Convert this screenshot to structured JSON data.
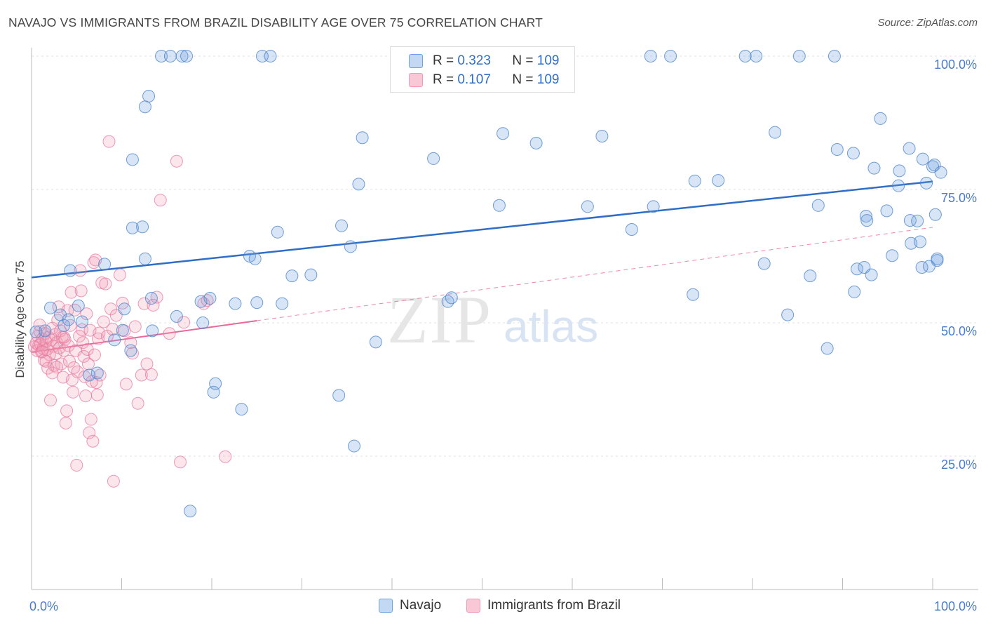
{
  "header": {
    "title": "NAVAJO VS IMMIGRANTS FROM BRAZIL DISABILITY AGE OVER 75 CORRELATION CHART",
    "source": "Source: ZipAtlas.com"
  },
  "legend": {
    "rows": [
      {
        "r_label": "R = ",
        "r_value": "0.323",
        "n_label": "N = ",
        "n_value": "109"
      },
      {
        "r_label": "R = ",
        "r_value": "0.107",
        "n_label": "N = ",
        "n_value": "109"
      }
    ]
  },
  "bottom_legend": {
    "navajo": "Navajo",
    "brazil": "Immigrants from Brazil"
  },
  "watermark": {
    "zip": "ZIP",
    "atlas": "atlas"
  },
  "colors": {
    "navajo": "#6fa3e0",
    "brazil": "#f19bb5",
    "navajo_line": "#2f6ec6",
    "brazil_line": "#e8689a",
    "tick_text": "#4a7cc9"
  },
  "chart_data": {
    "type": "scatter",
    "xlabel": "",
    "ylabel": "Disability Age Over 75",
    "xlim": [
      0,
      100
    ],
    "ylim": [
      0,
      100
    ],
    "x_tick_labels": [
      "0.0%",
      "100.0%"
    ],
    "y_tick_labels": [
      "25.0%",
      "50.0%",
      "75.0%",
      "100.0%"
    ],
    "y_ticks": [
      25,
      50,
      75,
      100
    ],
    "grid": true,
    "legend_position": "top-center",
    "series": [
      {
        "name": "Navajo",
        "r": 0.323,
        "n": 109,
        "trend": {
          "x": [
            0,
            100
          ],
          "y": [
            58.5,
            76.5
          ],
          "style": "solid"
        },
        "points": [
          [
            0.5,
            48.3
          ],
          [
            1.5,
            48.5
          ],
          [
            2.1,
            52.8
          ],
          [
            3.2,
            51.5
          ],
          [
            3.6,
            49.5
          ],
          [
            4.1,
            50.6
          ],
          [
            4.3,
            59.8
          ],
          [
            5.2,
            53.2
          ],
          [
            5.6,
            50.2
          ],
          [
            6.4,
            40.2
          ],
          [
            7.3,
            40.6
          ],
          [
            8.1,
            61
          ],
          [
            9.2,
            46.8
          ],
          [
            10.1,
            48.6
          ],
          [
            10.3,
            52.6
          ],
          [
            11,
            44.8
          ],
          [
            11.2,
            67.8
          ],
          [
            11.2,
            80.6
          ],
          [
            12.6,
            90.5
          ],
          [
            12.3,
            68
          ],
          [
            12.6,
            62
          ],
          [
            13,
            92.5
          ],
          [
            13.3,
            54.6
          ],
          [
            13.4,
            48.5
          ],
          [
            14.4,
            100
          ],
          [
            15.4,
            100
          ],
          [
            16.1,
            51.2
          ],
          [
            16.7,
            100
          ],
          [
            17.2,
            100
          ],
          [
            17.6,
            14.7
          ],
          [
            18.8,
            54
          ],
          [
            19,
            50
          ],
          [
            19.8,
            54.6
          ],
          [
            20.2,
            37
          ],
          [
            20.4,
            38.6
          ],
          [
            22.6,
            53.6
          ],
          [
            23.3,
            33.8
          ],
          [
            24.2,
            62.5
          ],
          [
            24.8,
            62
          ],
          [
            25,
            53.8
          ],
          [
            25.6,
            100
          ],
          [
            26.5,
            100
          ],
          [
            27.3,
            67
          ],
          [
            27.8,
            53.6
          ],
          [
            28.9,
            58.8
          ],
          [
            31,
            59
          ],
          [
            34.1,
            36.4
          ],
          [
            34.4,
            68.2
          ],
          [
            35.4,
            64.3
          ],
          [
            35.8,
            26.9
          ],
          [
            36.3,
            76
          ],
          [
            36.7,
            84.7
          ],
          [
            38.2,
            46.4
          ],
          [
            41.3,
            100
          ],
          [
            44.6,
            80.8
          ],
          [
            46.2,
            54
          ],
          [
            46.6,
            54.7
          ],
          [
            51.9,
            72
          ],
          [
            52.3,
            85.5
          ],
          [
            53.5,
            100
          ],
          [
            56,
            83.7
          ],
          [
            61.7,
            71.8
          ],
          [
            63.3,
            85
          ],
          [
            66.6,
            67.5
          ],
          [
            68.7,
            100
          ],
          [
            69,
            71.8
          ],
          [
            70.9,
            100
          ],
          [
            73.4,
            55.3
          ],
          [
            73.6,
            76.6
          ],
          [
            76.2,
            76.7
          ],
          [
            79.2,
            100
          ],
          [
            80.4,
            100
          ],
          [
            81.3,
            61.1
          ],
          [
            82.5,
            85.7
          ],
          [
            83.9,
            51.5
          ],
          [
            85.2,
            100
          ],
          [
            86.4,
            58.8
          ],
          [
            87.3,
            72
          ],
          [
            88.3,
            45.2
          ],
          [
            89.1,
            100
          ],
          [
            89.4,
            82.5
          ],
          [
            91.2,
            81.8
          ],
          [
            91.3,
            55.8
          ],
          [
            91.6,
            60.1
          ],
          [
            92.6,
            70
          ],
          [
            92.7,
            69.2
          ],
          [
            93.2,
            59
          ],
          [
            93.5,
            79
          ],
          [
            94.2,
            88.3
          ],
          [
            94.9,
            71
          ],
          [
            95.5,
            62.6
          ],
          [
            96.2,
            75.7
          ],
          [
            96.3,
            78.5
          ],
          [
            97.4,
            82.7
          ],
          [
            97.5,
            69.2
          ],
          [
            97.6,
            64.9
          ],
          [
            98.3,
            69.1
          ],
          [
            98.6,
            65.2
          ],
          [
            98.9,
            80.7
          ],
          [
            99.3,
            76.2
          ],
          [
            99.6,
            60.6
          ],
          [
            100,
            79.3
          ],
          [
            100.2,
            79.6
          ],
          [
            100.3,
            70.3
          ],
          [
            100.5,
            61.7
          ],
          [
            100.9,
            78.2
          ],
          [
            100.5,
            62
          ],
          [
            98.8,
            60.4
          ],
          [
            92.4,
            60.4
          ]
        ]
      },
      {
        "name": "Immigrants from Brazil",
        "r": 0.107,
        "n": 109,
        "trend": {
          "x": [
            0,
            25
          ],
          "y": [
            44.5,
            50.4
          ],
          "style": "solid"
        },
        "trend_extension": {
          "x": [
            25,
            100
          ],
          "y": [
            50.4,
            67.9
          ],
          "style": "dashed"
        },
        "points": [
          [
            0.3,
            45.5
          ],
          [
            0.5,
            46.2
          ],
          [
            0.6,
            44.8
          ],
          [
            0.7,
            47.5
          ],
          [
            0.8,
            45.8
          ],
          [
            0.9,
            48.4
          ],
          [
            1,
            46
          ],
          [
            1.1,
            44.5
          ],
          [
            1.2,
            47
          ],
          [
            1.3,
            45.2
          ],
          [
            1.4,
            43
          ],
          [
            1.5,
            48
          ],
          [
            1.6,
            46.5
          ],
          [
            1.7,
            45
          ],
          [
            1.8,
            41.5
          ],
          [
            1.9,
            47.3
          ],
          [
            2,
            44
          ],
          [
            2.1,
            35.5
          ],
          [
            2.2,
            46.8
          ],
          [
            2.3,
            49
          ],
          [
            2.4,
            45.6
          ],
          [
            2.5,
            42
          ],
          [
            2.6,
            47.8
          ],
          [
            2.7,
            44.2
          ],
          [
            2.8,
            46.3
          ],
          [
            2.9,
            50.5
          ],
          [
            3,
            53
          ],
          [
            3.1,
            45.3
          ],
          [
            3.2,
            48.5
          ],
          [
            3.3,
            42.3
          ],
          [
            3.4,
            47.3
          ],
          [
            3.5,
            39.8
          ],
          [
            3.6,
            44.8
          ],
          [
            3.7,
            46.9
          ],
          [
            3.8,
            31.2
          ],
          [
            3.9,
            33.5
          ],
          [
            4,
            52.3
          ],
          [
            4.1,
            45.7
          ],
          [
            4.2,
            42.8
          ],
          [
            4.3,
            49.5
          ],
          [
            4.4,
            55.7
          ],
          [
            4.5,
            39.3
          ],
          [
            4.6,
            37
          ],
          [
            4.7,
            41.6
          ],
          [
            4.8,
            52.4
          ],
          [
            4.9,
            44.8
          ],
          [
            5,
            23.3
          ],
          [
            5.1,
            40.8
          ],
          [
            5.3,
            47.5
          ],
          [
            5.4,
            59.8
          ],
          [
            5.5,
            56
          ],
          [
            5.6,
            48.7
          ],
          [
            5.7,
            46.3
          ],
          [
            5.8,
            43.7
          ],
          [
            5.9,
            39.9
          ],
          [
            6,
            36.3
          ],
          [
            6.1,
            51.7
          ],
          [
            6.2,
            45
          ],
          [
            6.3,
            42.3
          ],
          [
            6.4,
            29.4
          ],
          [
            6.5,
            48.6
          ],
          [
            6.6,
            31.9
          ],
          [
            6.7,
            39
          ],
          [
            6.8,
            27.8
          ],
          [
            6.9,
            61.3
          ],
          [
            7,
            44
          ],
          [
            7.1,
            61.8
          ],
          [
            7.2,
            38.8
          ],
          [
            7.3,
            36.5
          ],
          [
            7.4,
            47
          ],
          [
            7.5,
            48.1
          ],
          [
            7.6,
            40.2
          ],
          [
            7.8,
            57.5
          ],
          [
            8,
            50.2
          ],
          [
            8.2,
            57.3
          ],
          [
            8.4,
            47.5
          ],
          [
            8.6,
            84
          ],
          [
            8.8,
            52.6
          ],
          [
            9,
            48.8
          ],
          [
            9.1,
            20.3
          ],
          [
            9.4,
            51.4
          ],
          [
            9.8,
            59
          ],
          [
            10.1,
            53.7
          ],
          [
            10.3,
            48.5
          ],
          [
            10.5,
            38.5
          ],
          [
            11,
            46.3
          ],
          [
            11.2,
            44.3
          ],
          [
            11.5,
            49.3
          ],
          [
            11.8,
            34.9
          ],
          [
            12.2,
            40.2
          ],
          [
            12.5,
            53.6
          ],
          [
            12.8,
            42.3
          ],
          [
            13.3,
            40.3
          ],
          [
            13.5,
            53.3
          ],
          [
            13.9,
            54.8
          ],
          [
            14.3,
            73
          ],
          [
            15.3,
            48
          ],
          [
            16.1,
            80.3
          ],
          [
            16.5,
            23.9
          ],
          [
            16.9,
            50.1
          ],
          [
            19.1,
            53.6
          ],
          [
            19.5,
            54.2
          ],
          [
            21.5,
            24.9
          ],
          [
            1.2,
            44.6
          ],
          [
            2.8,
            41.7
          ],
          [
            3.6,
            47.3
          ],
          [
            0.9,
            49.6
          ],
          [
            1.6,
            42.8
          ],
          [
            2.3,
            40.6
          ]
        ]
      }
    ]
  }
}
